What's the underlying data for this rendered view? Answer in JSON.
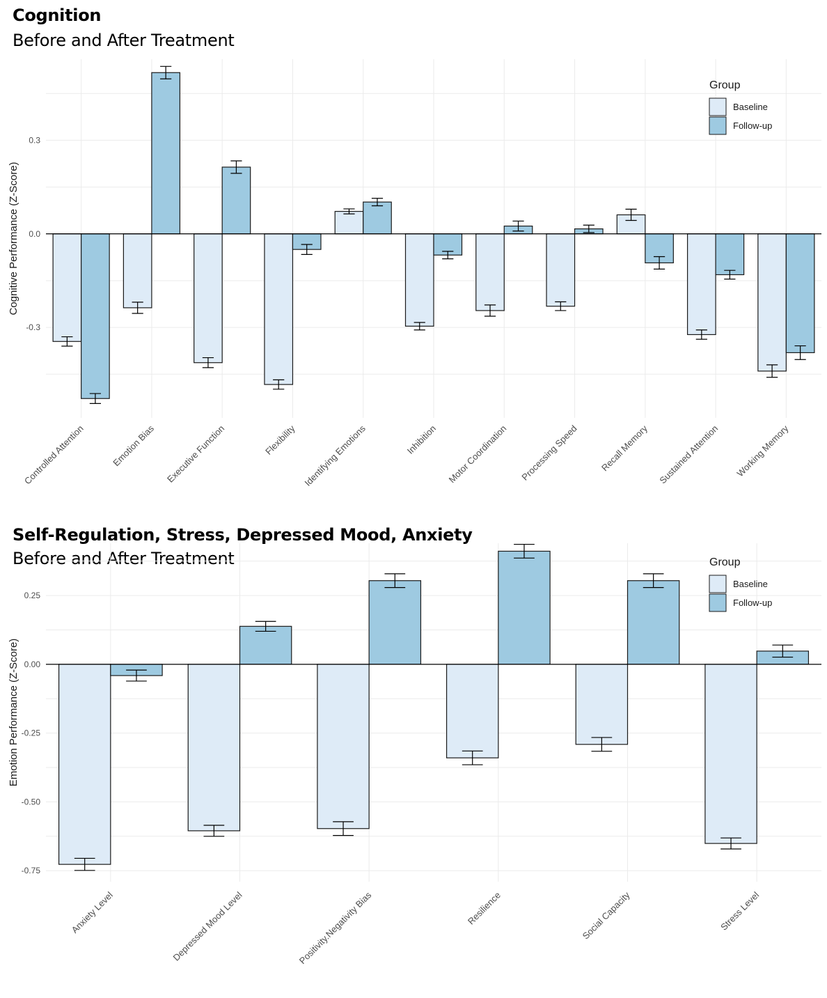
{
  "colors": {
    "baseline": "#deebf7",
    "followup": "#9ecae1",
    "outline": "#1a1a1a",
    "grid": "#ebebeb"
  },
  "chart_data": [
    {
      "type": "bar",
      "title": "Cognition",
      "subtitle": "Before and After Treatment",
      "xlabel": "",
      "ylabel": "Cognitive Performance (Z-Score)",
      "ylim": [
        -0.59,
        0.56
      ],
      "yticks": [
        -0.3,
        0.0,
        0.3
      ],
      "ytick_labels": [
        "-0.3",
        "0.0",
        "0.3"
      ],
      "grid": true,
      "legend": {
        "title": "Group",
        "placement": "top-right",
        "entries": [
          "Baseline",
          "Follow-up"
        ]
      },
      "categories": [
        "Controlled Attention",
        "Emotion Bias",
        "Executive Function",
        "Flexibility",
        "Identifying Emotions",
        "Inhibition",
        "Motor Coordination",
        "Processing Speed",
        "Recall Memory",
        "Sustained Attention",
        "Working Memory"
      ],
      "series": [
        {
          "name": "Baseline",
          "values": [
            -0.345,
            -0.237,
            -0.413,
            -0.483,
            0.072,
            -0.296,
            -0.246,
            -0.232,
            0.061,
            -0.323,
            -0.44
          ],
          "errors": [
            0.015,
            0.018,
            0.016,
            0.015,
            0.008,
            0.012,
            0.018,
            0.014,
            0.018,
            0.015,
            0.02
          ]
        },
        {
          "name": "Follow-up",
          "values": [
            -0.528,
            0.517,
            0.214,
            -0.05,
            0.102,
            -0.068,
            0.025,
            0.016,
            -0.093,
            -0.131,
            -0.381
          ],
          "errors": [
            0.016,
            0.02,
            0.02,
            0.016,
            0.012,
            0.012,
            0.016,
            0.012,
            0.02,
            0.014,
            0.022
          ]
        }
      ]
    },
    {
      "type": "bar",
      "title": "Self-Regulation, Stress, Depressed Mood, Anxiety",
      "subtitle": "Before and After Treatment",
      "xlabel": "",
      "ylabel": "Emotion Performance (Z-Score)",
      "ylim": [
        -0.79,
        0.44
      ],
      "yticks": [
        -0.75,
        -0.5,
        -0.25,
        0.0,
        0.25
      ],
      "ytick_labels": [
        "-0.75",
        "-0.50",
        "-0.25",
        "0.00",
        "0.25"
      ],
      "grid": true,
      "legend": {
        "title": "Group",
        "placement": "top-right",
        "entries": [
          "Baseline",
          "Follow-up"
        ]
      },
      "categories": [
        "Anxiety Level",
        "Depressed Mood Level",
        "Positivity.Negativity Bias",
        "Resilience",
        "Social Capacity",
        "Stress Level"
      ],
      "series": [
        {
          "name": "Baseline",
          "values": [
            -0.727,
            -0.605,
            -0.597,
            -0.34,
            -0.291,
            -0.651
          ],
          "errors": [
            0.022,
            0.02,
            0.025,
            0.025,
            0.025,
            0.02
          ]
        },
        {
          "name": "Follow-up",
          "values": [
            -0.041,
            0.138,
            0.304,
            0.411,
            0.304,
            0.048
          ],
          "errors": [
            0.02,
            0.018,
            0.025,
            0.025,
            0.025,
            0.022
          ]
        }
      ]
    }
  ]
}
